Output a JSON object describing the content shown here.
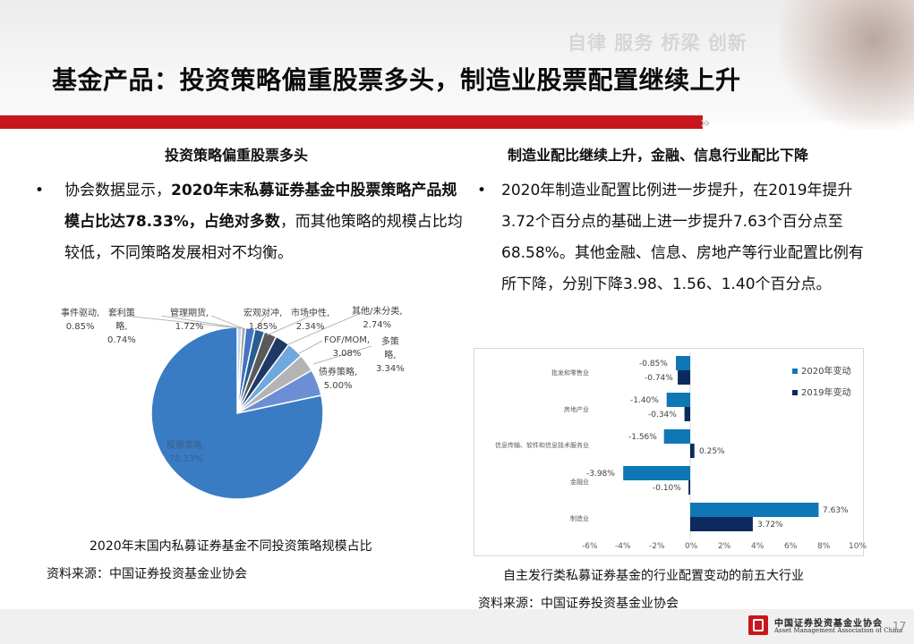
{
  "header": {
    "slogan": "自律 服务 桥梁 创新",
    "title": "基金产品：投资策略偏重股票多头，制造业股票配置继续上升",
    "chevron": "»"
  },
  "left": {
    "section_title": "投资策略偏重股票多头",
    "bullet_marker": "•",
    "bullet_parts": [
      {
        "text": "协会数据显示，",
        "bold": false
      },
      {
        "text": "2020年末私募证券基金中股票策略产品规模占比达78.33%，占绝对多数",
        "bold": true
      },
      {
        "text": "，而其他策略的规模占比均较低，不同策略发展相对不均衡。",
        "bold": false
      }
    ],
    "chart_caption": "2020年末国内私募证券基金不同投资策略规模占比",
    "source": "资料来源：中国证券投资基金业协会"
  },
  "right": {
    "section_title": "制造业配比继续上升，金融、信息行业配比下降",
    "bullet_marker": "•",
    "bullet_text": "2020年制造业配置比例进一步提升，在2019年提升3.72个百分点的基础上进一步提升7.63个百分点至68.58%。其他金融、信息、房地产等行业配置比例有所下降，分别下降3.98、1.56、1.40个百分点。",
    "chart_caption": "自主发行类私募证券基金的行业配置变动的前五大行业",
    "source": "资料来源：中国证券投资基金业协会"
  },
  "footer": {
    "org_cn": "中国证券投资基金业协会",
    "org_en": "Asset Management Association of China",
    "page_number": "17"
  },
  "colors": {
    "brand_red": "#c8161d",
    "series_2020": "#0f77b6",
    "series_2019": "#0c2a5e"
  },
  "chart_data": [
    {
      "type": "pie",
      "title": "2020年末国内私募证券基金不同投资策略规模占比",
      "categories": [
        "事件驱动",
        "套利策略",
        "管理期货",
        "宏观对冲",
        "市场中性",
        "其他/未分类",
        "FOF/MOM",
        "多策略",
        "债券策略",
        "股票策略"
      ],
      "values": [
        0.85,
        0.74,
        1.72,
        1.85,
        2.34,
        2.74,
        3.08,
        3.34,
        5.0,
        78.33
      ],
      "labels": [
        {
          "name": "事件驱动,",
          "value": "0.85%"
        },
        {
          "name": "套利策略,",
          "value": "0.74%"
        },
        {
          "name": "管理期货,",
          "value": "1.72%"
        },
        {
          "name": "宏观对冲,",
          "value": "1.85%"
        },
        {
          "name": "市场中性,",
          "value": "2.34%"
        },
        {
          "name": "其他/未分类,",
          "value": "2.74%"
        },
        {
          "name": "FOF/MOM,",
          "value": "3.08%"
        },
        {
          "name": "多策略,",
          "value": "3.34%"
        },
        {
          "name": "债券策略,",
          "value": "5.00%"
        },
        {
          "name": "股票策略,",
          "value": "78.33%"
        }
      ],
      "colors": [
        "#bdd7ee",
        "#a6a6a6",
        "#4472c4",
        "#255e91",
        "#595959",
        "#203864",
        "#6fa8dc",
        "#b4b4b4",
        "#6c8ed4",
        "#3a7cc4"
      ],
      "unit": "%"
    },
    {
      "type": "bar",
      "orientation": "horizontal",
      "title": "自主发行类私募证券基金的行业配置变动的前五大行业",
      "categories": [
        "批发和零售业",
        "房地产业",
        "信息传输、软件和信息技术服务业",
        "金融业",
        "制造业"
      ],
      "series": [
        {
          "name": "2020年变动",
          "values": [
            -0.85,
            -1.4,
            -1.56,
            -3.98,
            7.63
          ],
          "labels": [
            "-0.85%",
            "-1.40%",
            "-1.56%",
            "-3.98%",
            "7.63%"
          ]
        },
        {
          "name": "2019年变动",
          "values": [
            -0.74,
            -0.34,
            0.25,
            -0.1,
            3.72
          ],
          "labels": [
            "-0.74%",
            "-0.34%",
            "0.25%",
            "-0.10%",
            "3.72%"
          ]
        }
      ],
      "xlim": [
        -6,
        10
      ],
      "xticks": [
        "-6%",
        "-4%",
        "-2%",
        "0%",
        "2%",
        "4%",
        "6%",
        "8%",
        "10%"
      ],
      "grid": false,
      "legend_position": "right-top"
    }
  ]
}
